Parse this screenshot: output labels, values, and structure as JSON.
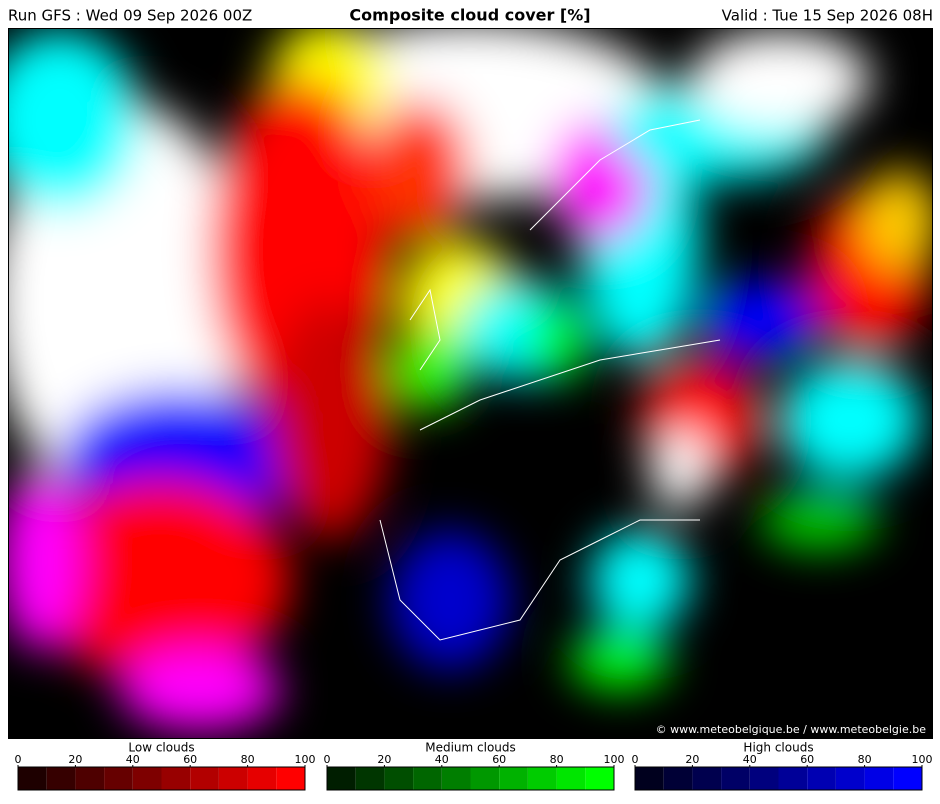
{
  "header": {
    "run": "Run GFS : Wed 09 Sep 2026 00Z",
    "title": "Composite cloud cover [%]",
    "valid": "Valid : Tue 15 Sep 2026 08H"
  },
  "credit": "© www.meteobelgique.be / www.meteobelgie.be",
  "legends": [
    {
      "title": "Low clouds",
      "ticks": [
        0,
        20,
        40,
        60,
        80,
        100
      ],
      "colors": [
        "#1e0000",
        "#360000",
        "#4e0000",
        "#660000",
        "#7e0000",
        "#980000",
        "#b20000",
        "#cc0000",
        "#e60000",
        "#ff0000"
      ]
    },
    {
      "title": "Medium clouds",
      "ticks": [
        0,
        20,
        40,
        60,
        80,
        100
      ],
      "colors": [
        "#001e00",
        "#003600",
        "#004e00",
        "#006600",
        "#007e00",
        "#009800",
        "#00b200",
        "#00cc00",
        "#00e600",
        "#00ff00"
      ]
    },
    {
      "title": "High clouds",
      "ticks": [
        0,
        20,
        40,
        60,
        80,
        100
      ],
      "colors": [
        "#00001e",
        "#000036",
        "#00004e",
        "#000066",
        "#00007e",
        "#000098",
        "#0000b2",
        "#0000cc",
        "#0000e6",
        "#0000ff"
      ]
    }
  ]
}
